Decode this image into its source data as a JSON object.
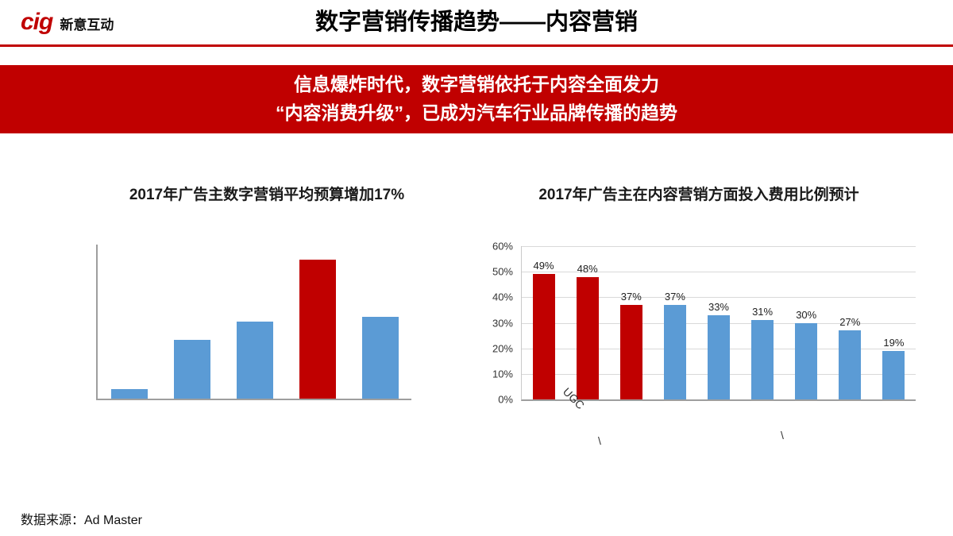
{
  "header": {
    "logo_text": "cig",
    "logo_company": "新意互动",
    "title": "数字营销传播趋势——内容营销"
  },
  "banner": {
    "line1": "信息爆炸时代，数字营销依托于内容全面发力",
    "line2": "“内容消费升级”，已成为汽车行业品牌传播的趋势"
  },
  "footer": {
    "source": "数据来源：Ad Master"
  },
  "colors": {
    "accent_red": "#C00000",
    "bar_blue": "#5B9BD5",
    "banner_bg": "#C00000",
    "banner_text": "#FFFFFF",
    "axis_gray": "#9E9E9E",
    "grid_gray": "#D9D9D9"
  },
  "chart_data": [
    {
      "type": "bar",
      "title": "2017年广告主数字营销平均预算增加17%",
      "categories": [
        "",
        "",
        "",
        "",
        ""
      ],
      "values": [
        6,
        38,
        50,
        90,
        53
      ],
      "bar_colors": [
        "#5B9BD5",
        "#5B9BD5",
        "#5B9BD5",
        "#C00000",
        "#5B9BD5"
      ],
      "ylim": [
        0,
        100
      ],
      "grid": false,
      "axis_tick_labels_shown": false
    },
    {
      "type": "bar",
      "title": "2017年广告主在内容营销方面投入费用比例预计",
      "categories": [
        "",
        "UGC",
        "",
        "",
        "",
        "",
        "",
        "",
        ""
      ],
      "values": [
        49,
        48,
        37,
        37,
        33,
        31,
        30,
        27,
        19
      ],
      "value_labels": [
        "49%",
        "48%",
        "37%",
        "37%",
        "33%",
        "31%",
        "30%",
        "27%",
        "19%"
      ],
      "bar_colors": [
        "#C00000",
        "#C00000",
        "#C00000",
        "#5B9BD5",
        "#5B9BD5",
        "#5B9BD5",
        "#5B9BD5",
        "#5B9BD5",
        "#5B9BD5"
      ],
      "ylim": [
        0,
        60
      ],
      "ytick_labels": [
        "0%",
        "10%",
        "20%",
        "30%",
        "40%",
        "50%",
        "60%"
      ],
      "grid": true,
      "partial_x_labels": [
        "\\",
        "\\"
      ],
      "legend": "none"
    }
  ]
}
